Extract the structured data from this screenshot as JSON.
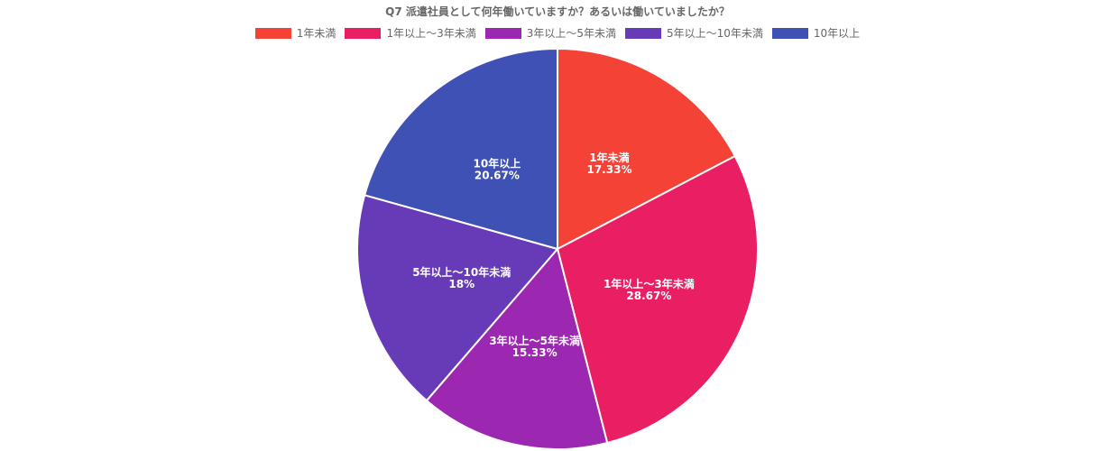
{
  "chart_data": {
    "type": "pie",
    "title": "Q7 派遣社員として何年働いていますか？あるいは働いていましたか？",
    "categories": [
      "1年未満",
      "1年以上～3年未満",
      "3年以上～5年未満",
      "5年以上～10年未満",
      "10年以上"
    ],
    "values": [
      17.33,
      28.67,
      15.33,
      18,
      20.67
    ],
    "value_labels": [
      "17.33%",
      "28.67%",
      "15.33%",
      "18%",
      "20.67%"
    ],
    "colors": [
      "#f44336",
      "#e91e63",
      "#9c27b0",
      "#673ab7",
      "#3f51b5"
    ],
    "legend_position": "top"
  }
}
